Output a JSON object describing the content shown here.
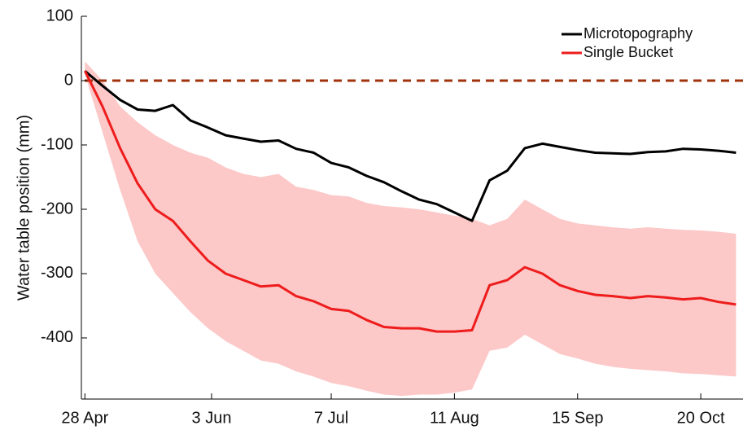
{
  "chart_data": {
    "type": "line",
    "y_label": "Water table position (mm)",
    "x": [
      "28 Apr",
      "3 May",
      "8 May",
      "13 May",
      "18 May",
      "23 May",
      "28 May",
      "2 Jun",
      "7 Jun",
      "12 Jun",
      "17 Jun",
      "22 Jun",
      "27 Jun",
      "2 Jul",
      "7 Jul",
      "12 Jul",
      "17 Jul",
      "22 Jul",
      "27 Jul",
      "1 Aug",
      "6 Aug",
      "11 Aug",
      "16 Aug",
      "21 Aug",
      "26 Aug",
      "31 Aug",
      "5 Sep",
      "10 Sep",
      "15 Sep",
      "20 Sep",
      "25 Sep",
      "30 Sep",
      "5 Oct",
      "10 Oct",
      "15 Oct",
      "20 Oct",
      "25 Oct",
      "30 Oct"
    ],
    "series": [
      {
        "name": "Microtopography",
        "color": "#000000",
        "values": [
          15,
          -8,
          -30,
          -45,
          -47,
          -38,
          -62,
          -73,
          -85,
          -90,
          -95,
          -93,
          -106,
          -112,
          -128,
          -135,
          -148,
          -158,
          -172,
          -185,
          -192,
          -205,
          -218,
          -155,
          -140,
          -105,
          -98,
          -103,
          -108,
          -112,
          -113,
          -114,
          -111,
          -110,
          -106,
          -107,
          -109,
          -112
        ]
      },
      {
        "name": "Single Bucket",
        "color": "#ee1c1c",
        "values": [
          15,
          -40,
          -105,
          -160,
          -200,
          -218,
          -250,
          -280,
          -300,
          -310,
          -320,
          -318,
          -335,
          -343,
          -355,
          -358,
          -372,
          -383,
          -385,
          -385,
          -390,
          -390,
          -388,
          -318,
          -310,
          -290,
          -300,
          -318,
          -327,
          -333,
          -335,
          -338,
          -335,
          -337,
          -340,
          -338,
          -344,
          -348
        ]
      }
    ],
    "band": {
      "color": "#fcc8c8",
      "upper": [
        30,
        0,
        -40,
        -65,
        -85,
        -100,
        -112,
        -120,
        -135,
        -145,
        -150,
        -145,
        -165,
        -170,
        -178,
        -180,
        -190,
        -195,
        -197,
        -200,
        -205,
        -210,
        -215,
        -225,
        -215,
        -185,
        -200,
        -215,
        -222,
        -225,
        -228,
        -230,
        -228,
        -230,
        -232,
        -233,
        -235,
        -238
      ],
      "lower": [
        10,
        -80,
        -170,
        -250,
        -300,
        -330,
        -360,
        -385,
        -405,
        -420,
        -435,
        -440,
        -452,
        -460,
        -470,
        -475,
        -482,
        -488,
        -490,
        -488,
        -488,
        -485,
        -480,
        -420,
        -415,
        -395,
        -410,
        -425,
        -432,
        -440,
        -445,
        -448,
        -450,
        -452,
        -455,
        -456,
        -458,
        -460
      ]
    },
    "hline": 0,
    "hline_color": "#a0330d",
    "xlim": [
      "27 Apr",
      "1 Nov"
    ],
    "xticks": [
      "28 Apr",
      "3 Jun",
      "7 Jul",
      "11 Aug",
      "15 Sep",
      "20 Oct"
    ],
    "ylim": [
      -495,
      100
    ],
    "yticks": [
      -400,
      -300,
      -200,
      -100,
      0,
      100
    ],
    "legend": "upper right"
  }
}
